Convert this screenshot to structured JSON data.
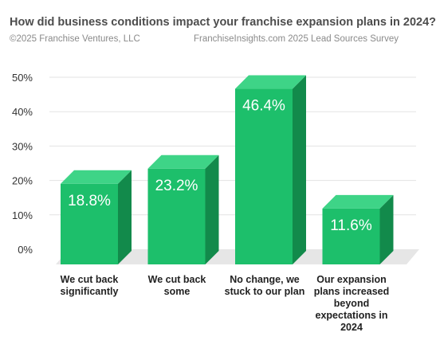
{
  "header": {
    "title": "How did business conditions impact your franchise expansion plans in 2024?",
    "copyright": "©2025 Franchise Ventures, LLC",
    "source": "FranchiseInsights.com 2025 Lead Sources Survey"
  },
  "colors": {
    "bar_front": "#1dbf6b",
    "bar_top": "#3ed487",
    "bar_side": "#128a4b",
    "floor": "#e6e6e6",
    "gridline": "#e3e3e3",
    "tick_text": "#333333",
    "value_text": "#ffffff"
  },
  "chart_data": {
    "type": "bar",
    "categories": [
      "We cut back significantly",
      "We cut back some",
      "No change, we stuck to our plan",
      "Our expansion plans increased beyond expectations in 2024"
    ],
    "values": [
      18.8,
      23.2,
      46.4,
      11.6
    ],
    "value_labels": [
      "18.8%",
      "23.2%",
      "46.4%",
      "11.6%"
    ],
    "yticks": [
      "0%",
      "10%",
      "20%",
      "30%",
      "40%",
      "50%"
    ],
    "ylim": [
      0,
      50
    ],
    "grid": true,
    "three_d": true,
    "title": "How did business conditions impact your franchise expansion plans in 2024?"
  }
}
